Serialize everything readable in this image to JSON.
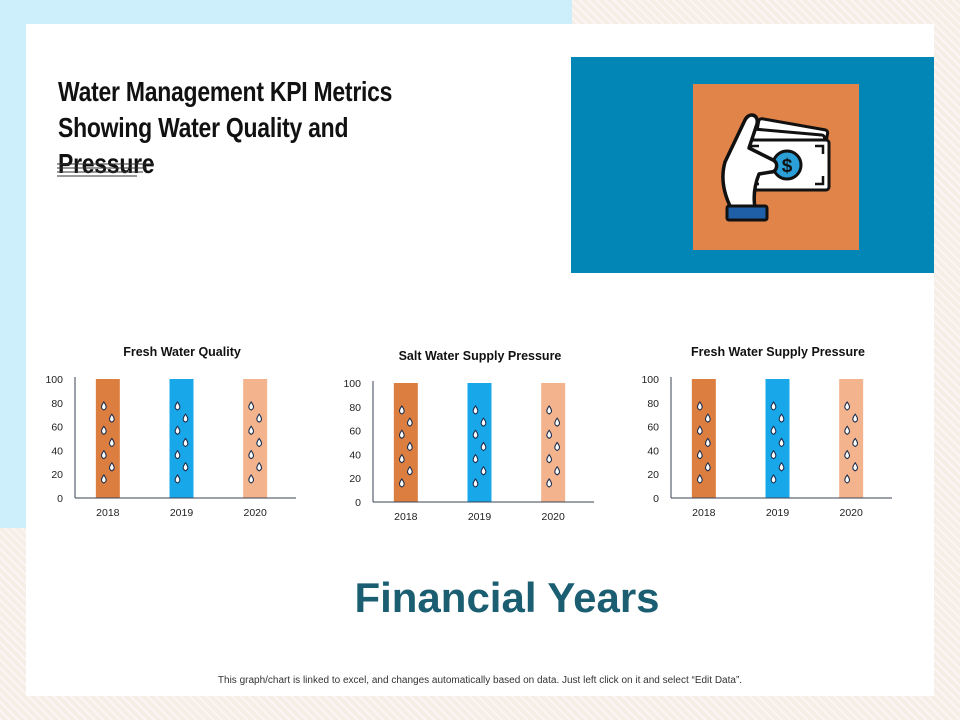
{
  "page": {
    "title": "Water Management KPI Metrics Showing Water Quality and Pressure",
    "footer_title": "Financial Years",
    "note": "This graph/chart is linked to excel, and changes automatically based on data. Just left click on it and select “Edit Data”."
  },
  "hero": {
    "icon": "hand-holding-money-icon"
  },
  "colors": {
    "bar_2018": "#dd7e41",
    "bar_2019": "#18a8ea",
    "bar_2020": "#f2b38d",
    "drop": "#1f2f4d",
    "axis": "#3a4050",
    "hero_bg": "#0286b6",
    "hero_tile": "#e0844a",
    "heading": "#1b5e72"
  },
  "chart_data": [
    {
      "type": "bar",
      "title": "Fresh Water Quality",
      "categories": [
        "2018",
        "2019",
        "2020"
      ],
      "values": [
        100,
        100,
        100
      ],
      "xlabel": "",
      "ylabel": "",
      "ylim": [
        0,
        100
      ],
      "yticks": [
        "0",
        "20",
        "40",
        "60",
        "80",
        "100"
      ]
    },
    {
      "type": "bar",
      "title": "Salt Water Supply Pressure",
      "categories": [
        "2018",
        "2019",
        "2020"
      ],
      "values": [
        100,
        100,
        100
      ],
      "xlabel": "",
      "ylabel": "",
      "ylim": [
        0,
        100
      ],
      "yticks": [
        "0",
        "20",
        "40",
        "60",
        "80",
        "100"
      ]
    },
    {
      "type": "bar",
      "title": "Fresh Water Supply Pressure",
      "categories": [
        "2018",
        "2019",
        "2020"
      ],
      "values": [
        100,
        100,
        100
      ],
      "xlabel": "",
      "ylabel": "",
      "ylim": [
        0,
        100
      ],
      "yticks": [
        "0",
        "20",
        "40",
        "60",
        "80",
        "100"
      ]
    }
  ]
}
